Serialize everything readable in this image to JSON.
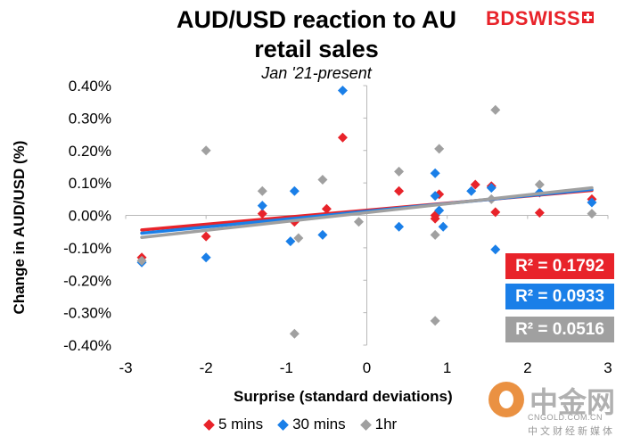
{
  "chart_data": {
    "type": "scatter",
    "title": "AUD/USD reaction to AU retail sales",
    "subtitle": "Jan '21-present",
    "xlabel": "Surprise (standard deviations)",
    "ylabel": "Change in AUD/USD (%)",
    "xlim": [
      -3,
      3
    ],
    "ylim": [
      -0.4,
      0.4
    ],
    "xticks": [
      "-3",
      "-2",
      "-1",
      "0",
      "1",
      "2",
      "3"
    ],
    "yticks": [
      "-0.40%",
      "-0.30%",
      "-0.20%",
      "-0.10%",
      "0.00%",
      "0.10%",
      "0.20%",
      "0.30%",
      "0.40%"
    ],
    "series": [
      {
        "name": "5 mins",
        "color": "#e8232a",
        "r2_label": "R² = 0.1792",
        "trend": [
          [
            -2.8,
            -0.045
          ],
          [
            2.8,
            0.077
          ]
        ],
        "points": [
          [
            -2.8,
            -0.13
          ],
          [
            -2.0,
            -0.065
          ],
          [
            -1.3,
            0.005
          ],
          [
            -0.9,
            -0.02
          ],
          [
            -0.5,
            0.02
          ],
          [
            -0.3,
            0.24
          ],
          [
            0.4,
            0.075
          ],
          [
            0.85,
            0.0
          ],
          [
            0.85,
            -0.01
          ],
          [
            0.9,
            0.065
          ],
          [
            1.35,
            0.095
          ],
          [
            1.55,
            0.09
          ],
          [
            1.6,
            0.01
          ],
          [
            2.15,
            0.008
          ],
          [
            2.8,
            0.05
          ]
        ]
      },
      {
        "name": "30 mins",
        "color": "#1a7fe8",
        "r2_label": "R² = 0.0933",
        "trend": [
          [
            -2.8,
            -0.055
          ],
          [
            2.8,
            0.08
          ]
        ],
        "points": [
          [
            -2.8,
            -0.145
          ],
          [
            -2.0,
            -0.13
          ],
          [
            -1.3,
            0.03
          ],
          [
            -0.95,
            -0.08
          ],
          [
            -0.9,
            0.075
          ],
          [
            -0.55,
            -0.06
          ],
          [
            -0.3,
            0.385
          ],
          [
            0.4,
            -0.035
          ],
          [
            0.85,
            0.13
          ],
          [
            0.85,
            0.06
          ],
          [
            0.9,
            0.015
          ],
          [
            0.95,
            -0.035
          ],
          [
            1.3,
            0.075
          ],
          [
            1.55,
            0.085
          ],
          [
            1.6,
            -0.105
          ],
          [
            2.15,
            0.07
          ],
          [
            2.8,
            0.04
          ]
        ]
      },
      {
        "name": "1hr",
        "color": "#a0a0a0",
        "r2_label": "R² = 0.0516",
        "trend": [
          [
            -2.8,
            -0.068
          ],
          [
            2.8,
            0.085
          ]
        ],
        "points": [
          [
            -2.8,
            -0.14
          ],
          [
            -2.0,
            0.2
          ],
          [
            -1.3,
            0.075
          ],
          [
            -0.9,
            -0.365
          ],
          [
            -0.85,
            -0.07
          ],
          [
            -0.55,
            0.11
          ],
          [
            -0.1,
            -0.02
          ],
          [
            0.4,
            0.135
          ],
          [
            0.85,
            -0.06
          ],
          [
            0.85,
            -0.325
          ],
          [
            0.9,
            0.205
          ],
          [
            1.55,
            0.05
          ],
          [
            1.6,
            0.325
          ],
          [
            2.15,
            0.095
          ],
          [
            2.8,
            0.005
          ]
        ]
      }
    ]
  },
  "branding": {
    "logo_bd": "BD",
    "logo_swiss": "SWISS",
    "watermark_name": "中金网",
    "watermark_domain": "CNGOLD.COM.CN",
    "watermark_sub": "中文财经新媒体"
  }
}
